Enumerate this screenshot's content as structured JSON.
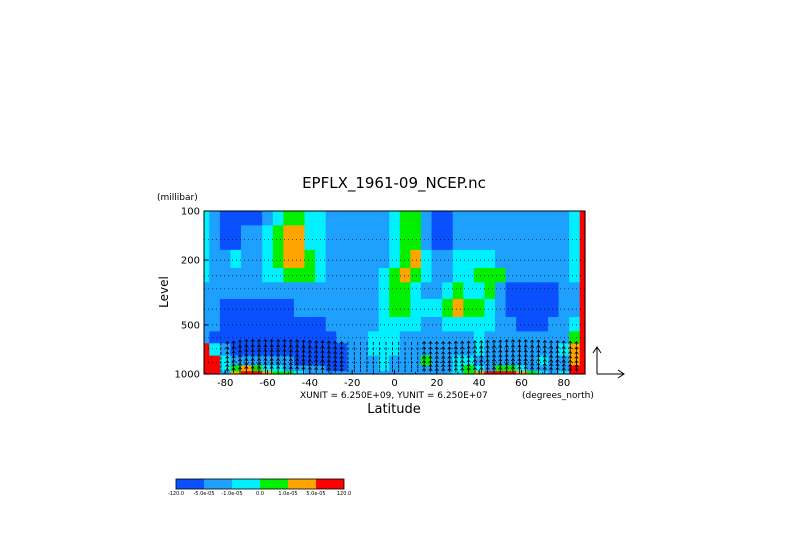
{
  "chart_data": {
    "type": "heatmap",
    "title": "EPFLX_1961-09_NCEP.nc",
    "xlabel": "Latitude",
    "ylabel": "Level",
    "y_unit_label": "(millibar)",
    "x_unit_label": "(degrees_north)",
    "vector_units_label": "XUNIT = 6.250E+09, YUNIT = 6.250E+07",
    "xlim": [
      -90,
      90
    ],
    "ylim": [
      1000,
      100
    ],
    "y_scale": "log",
    "x_ticks": [
      "-80",
      "-60",
      "-40",
      "-20",
      "0",
      "20",
      "40",
      "60",
      "80"
    ],
    "y_ticks": [
      "100",
      "200",
      "500",
      "1000"
    ],
    "grid": true,
    "colorbar": {
      "colors": [
        "#0a50ff",
        "#1ea0ff",
        "#00f0ff",
        "#00f000",
        "#ffa500",
        "#ff0000"
      ],
      "labels": [
        "-120.0",
        "-5.0e-05",
        "-1.0e-05",
        "0.0",
        "1.0e-05",
        "5.0e-05",
        "120.0"
      ]
    },
    "x": [
      -90,
      -85,
      -80,
      -75,
      -70,
      -65,
      -60,
      -55,
      -50,
      -45,
      -40,
      -35,
      -30,
      -25,
      -20,
      -15,
      -10,
      -5,
      0,
      5,
      10,
      15,
      20,
      25,
      30,
      35,
      40,
      45,
      50,
      55,
      60,
      65,
      70,
      75,
      80,
      85,
      90
    ],
    "levels": [
      100,
      150,
      200,
      250,
      300,
      400,
      500,
      600,
      700,
      850,
      925,
      1000
    ],
    "values": [
      [
        2,
        1,
        0,
        0,
        0,
        0,
        1,
        2,
        3,
        3,
        2,
        2,
        1,
        1,
        1,
        1,
        1,
        1,
        2,
        3,
        3,
        1,
        0,
        0,
        1,
        1,
        1,
        1,
        1,
        1,
        1,
        1,
        1,
        1,
        1,
        2,
        5
      ],
      [
        2,
        1,
        0,
        0,
        1,
        1,
        2,
        3,
        4,
        4,
        2,
        2,
        1,
        1,
        1,
        1,
        1,
        1,
        2,
        3,
        3,
        1,
        0,
        0,
        1,
        1,
        1,
        1,
        1,
        1,
        1,
        1,
        1,
        1,
        1,
        2,
        5
      ],
      [
        2,
        1,
        1,
        2,
        1,
        1,
        2,
        3,
        4,
        4,
        3,
        2,
        1,
        1,
        1,
        1,
        1,
        1,
        2,
        3,
        4,
        2,
        1,
        1,
        2,
        2,
        2,
        2,
        1,
        1,
        1,
        1,
        1,
        1,
        1,
        2,
        5
      ],
      [
        2,
        1,
        1,
        1,
        1,
        1,
        2,
        2,
        3,
        3,
        3,
        2,
        1,
        1,
        1,
        1,
        1,
        2,
        3,
        4,
        3,
        2,
        1,
        1,
        2,
        2,
        3,
        3,
        3,
        1,
        1,
        1,
        1,
        1,
        1,
        2,
        5
      ],
      [
        1,
        1,
        1,
        1,
        1,
        1,
        1,
        1,
        1,
        1,
        1,
        1,
        1,
        1,
        1,
        1,
        1,
        2,
        3,
        3,
        2,
        1,
        1,
        2,
        3,
        2,
        2,
        3,
        1,
        0,
        0,
        0,
        0,
        0,
        1,
        1,
        5
      ],
      [
        1,
        1,
        0,
        0,
        0,
        0,
        0,
        0,
        0,
        1,
        1,
        1,
        1,
        1,
        1,
        1,
        1,
        2,
        3,
        3,
        2,
        2,
        2,
        3,
        4,
        3,
        3,
        2,
        1,
        0,
        0,
        0,
        0,
        0,
        1,
        1,
        5
      ],
      [
        1,
        1,
        0,
        0,
        0,
        0,
        0,
        0,
        0,
        0,
        0,
        0,
        1,
        1,
        1,
        1,
        1,
        2,
        2,
        2,
        2,
        1,
        1,
        2,
        2,
        2,
        2,
        2,
        1,
        1,
        0,
        0,
        0,
        1,
        1,
        2,
        5
      ],
      [
        1,
        0,
        0,
        0,
        0,
        0,
        0,
        0,
        0,
        0,
        0,
        0,
        0,
        1,
        1,
        1,
        2,
        2,
        2,
        1,
        1,
        1,
        1,
        1,
        1,
        1,
        2,
        1,
        1,
        1,
        1,
        1,
        1,
        1,
        1,
        3,
        5
      ],
      [
        5,
        2,
        1,
        0,
        0,
        0,
        0,
        0,
        0,
        0,
        0,
        0,
        0,
        0,
        1,
        1,
        2,
        2,
        2,
        1,
        1,
        1,
        1,
        1,
        1,
        1,
        2,
        1,
        1,
        1,
        1,
        1,
        1,
        1,
        2,
        4,
        5
      ],
      [
        5,
        5,
        2,
        1,
        1,
        1,
        1,
        1,
        1,
        0,
        0,
        0,
        0,
        0,
        1,
        1,
        1,
        2,
        1,
        1,
        1,
        3,
        1,
        1,
        2,
        2,
        1,
        1,
        1,
        1,
        1,
        1,
        2,
        1,
        1,
        4,
        5
      ],
      [
        5,
        5,
        2,
        3,
        4,
        3,
        2,
        2,
        1,
        1,
        1,
        1,
        0,
        0,
        1,
        1,
        1,
        2,
        1,
        1,
        1,
        1,
        1,
        1,
        2,
        3,
        2,
        1,
        3,
        3,
        2,
        1,
        1,
        1,
        1,
        5,
        5
      ],
      [
        5,
        5,
        1,
        4,
        5,
        5,
        4,
        3,
        3,
        2,
        1,
        1,
        1,
        1,
        1,
        1,
        1,
        1,
        1,
        1,
        1,
        1,
        1,
        1,
        2,
        3,
        4,
        5,
        5,
        5,
        4,
        3,
        2,
        1,
        2,
        5,
        5
      ]
    ],
    "arrow_x": [
      -82,
      -79,
      -76,
      -73,
      -70,
      -67,
      -64,
      -61,
      -58,
      -55,
      -52,
      -49,
      -46,
      -43,
      -40,
      -37,
      -34,
      -31,
      -28,
      -25,
      -22,
      -19,
      -16,
      -13,
      -10,
      -7,
      -4,
      -1,
      2,
      5,
      8,
      11,
      14,
      17,
      20,
      23,
      26,
      29,
      32,
      35,
      38,
      41,
      44,
      47,
      50,
      53,
      56,
      59,
      62,
      65,
      68,
      71,
      74,
      77,
      80,
      83,
      86
    ],
    "arrow_levels": [
      650,
      700,
      750,
      800,
      850,
      900,
      950
    ],
    "arrow_strength": [
      0.2,
      0.3,
      0.5,
      0.8,
      1.0,
      1.0,
      1.0,
      1.0,
      1.0,
      1.0,
      1.0,
      0.9,
      0.9,
      0.8,
      0.7,
      0.6,
      0.6,
      0.5,
      0.4,
      0.3,
      0.2,
      0.2,
      0.2,
      0.2,
      0.2,
      0.2,
      0.2,
      0.2,
      0.2,
      0.2,
      0.2,
      0.2,
      0.3,
      0.3,
      0.3,
      0.3,
      0.3,
      0.4,
      0.4,
      0.5,
      0.6,
      0.6,
      0.7,
      0.8,
      0.8,
      0.9,
      0.9,
      0.9,
      0.9,
      0.8,
      0.8,
      0.7,
      0.6,
      0.6,
      0.5,
      0.4,
      0.3
    ]
  }
}
